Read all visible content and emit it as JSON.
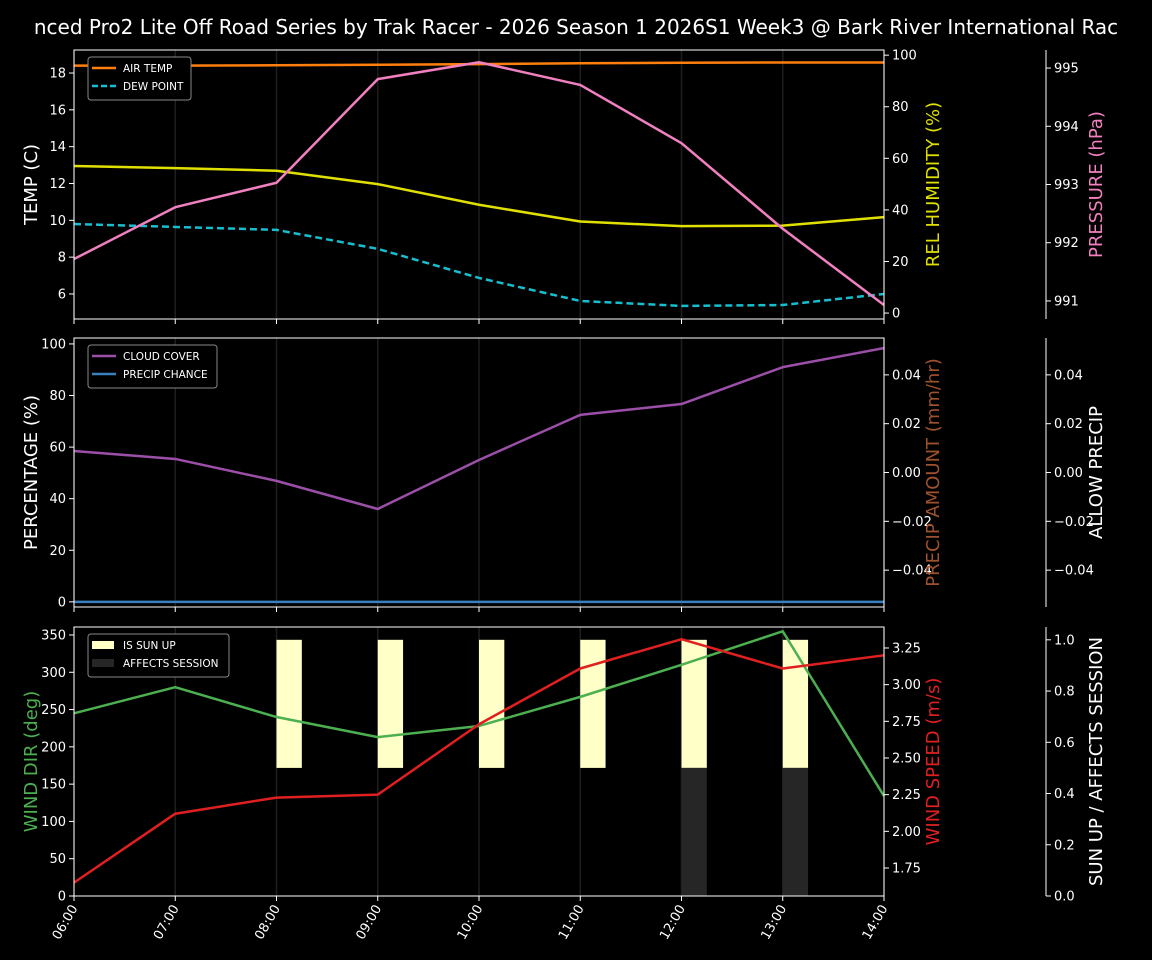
{
  "chart_data": [
    {
      "type": "line",
      "title": "nced Pro2 Lite Off Road Series by Trak Racer - 2026 Season 1 2026S1 Week3 @ Bark River International Rac",
      "x": [
        "06:00",
        "07:00",
        "08:00",
        "09:00",
        "10:00",
        "11:00",
        "12:00",
        "13:00",
        "14:00"
      ],
      "axes": [
        {
          "id": "temp",
          "label": "TEMP (C)",
          "color": "#ffffff",
          "ylim": [
            4.64,
            19.25
          ],
          "ticks": [
            6,
            8,
            10,
            12,
            14,
            16,
            18
          ],
          "side": "left"
        },
        {
          "id": "hum",
          "label": "REL HUMIDITY (%)",
          "color": "#e0e000",
          "ylim": [
            -2.3,
            102
          ],
          "ticks": [
            0,
            20,
            40,
            60,
            80,
            100
          ],
          "side": "right"
        },
        {
          "id": "pres",
          "label": "PRESSURE (hPa)",
          "color": "#f080c0",
          "ylim": [
            990.69,
            995.31
          ],
          "ticks": [
            991,
            992,
            993,
            994,
            995
          ],
          "side": "right-outer"
        }
      ],
      "series": [
        {
          "name": "AIR TEMP",
          "axis": "temp",
          "color": "#ff7f0e",
          "dash": false,
          "legend": true,
          "values": [
            18.4,
            18.4,
            18.42,
            18.45,
            18.48,
            18.53,
            18.56,
            18.57,
            18.57
          ]
        },
        {
          "name": "DEW POINT",
          "axis": "temp",
          "color": "#17becf",
          "dash": true,
          "legend": true,
          "values": [
            9.8,
            9.64,
            9.48,
            8.45,
            6.87,
            5.62,
            5.35,
            5.4,
            6.0
          ]
        },
        {
          "axis": "hum",
          "color": "#e0e000",
          "dash": false,
          "legend": false,
          "values": [
            57,
            56.2,
            55.2,
            50,
            42,
            35.5,
            33.7,
            33.9,
            37.2
          ]
        },
        {
          "axis": "pres",
          "color": "#f080c0",
          "dash": false,
          "legend": false,
          "values": [
            991.72,
            992.61,
            993.03,
            994.81,
            995.1,
            994.71,
            993.71,
            992.24,
            990.93
          ]
        }
      ],
      "legend_position": "top-left",
      "grid": "x-only"
    },
    {
      "type": "line",
      "x": [
        "06:00",
        "07:00",
        "08:00",
        "09:00",
        "10:00",
        "11:00",
        "12:00",
        "13:00",
        "14:00"
      ],
      "axes": [
        {
          "id": "pct",
          "label": "PERCENTAGE (%)",
          "color": "#ffffff",
          "ylim": [
            -2,
            102.3
          ],
          "ticks": [
            0,
            20,
            40,
            60,
            80,
            100
          ],
          "side": "left"
        },
        {
          "id": "amt",
          "label": "PRECIP AMOUNT (mm/hr)",
          "color": "#a0522d",
          "ylim": [
            -0.0551,
            0.0551
          ],
          "ticks": [
            -0.04,
            -0.02,
            0.0,
            0.02,
            0.04
          ],
          "tick_labels": [
            "−0.04",
            "−0.02",
            "0.00",
            "0.02",
            "0.04"
          ],
          "side": "right"
        },
        {
          "id": "allow",
          "label": "ALLOW PRECIP",
          "color": "#ffffff",
          "ylim": [
            -0.0551,
            0.0551
          ],
          "ticks": [
            -0.04,
            -0.02,
            0.0,
            0.02,
            0.04
          ],
          "tick_labels": [
            "−0.04",
            "−0.02",
            "0.00",
            "0.02",
            "0.04"
          ],
          "side": "right-outer"
        }
      ],
      "series": [
        {
          "name": "CLOUD COVER",
          "axis": "pct",
          "color": "#9b4fa8",
          "dash": false,
          "legend": true,
          "values": [
            58.5,
            55.4,
            46.9,
            36,
            55,
            72.5,
            76.7,
            91,
            98.4
          ]
        },
        {
          "name": "PRECIP CHANCE",
          "axis": "pct",
          "color": "#3a7fc0",
          "dash": false,
          "legend": true,
          "values": [
            0,
            0,
            0,
            0,
            0,
            0,
            0,
            0,
            0
          ]
        }
      ],
      "legend_position": "top-left",
      "grid": "x-only"
    },
    {
      "type": "line",
      "x": [
        "06:00",
        "07:00",
        "08:00",
        "09:00",
        "10:00",
        "11:00",
        "12:00",
        "13:00",
        "14:00"
      ],
      "axes": [
        {
          "id": "dir",
          "label": "WIND DIR (deg)",
          "color": "#4caf50",
          "ylim": [
            0,
            360.7
          ],
          "ticks": [
            0,
            50,
            100,
            150,
            200,
            250,
            300,
            350
          ],
          "side": "left"
        },
        {
          "id": "spd",
          "label": "WIND SPEED (m/s)",
          "color": "#e02020",
          "ylim": [
            1.559,
            3.393
          ],
          "ticks": [
            1.75,
            2.0,
            2.25,
            2.5,
            2.75,
            3.0,
            3.25
          ],
          "tick_labels": [
            "1.75",
            "2.00",
            "2.25",
            "2.50",
            "2.75",
            "3.00",
            "3.25"
          ],
          "side": "right"
        },
        {
          "id": "sun",
          "label": "SUN UP / AFFECTS SESSION",
          "color": "#ffffff",
          "ylim": [
            0,
            1.05
          ],
          "ticks": [
            0,
            0.2,
            0.4,
            0.6,
            0.8,
            1.0
          ],
          "tick_labels": [
            "0.0",
            "0.2",
            "0.4",
            "0.6",
            "0.8",
            "1.0"
          ],
          "side": "right-outer"
        }
      ],
      "bars": [
        {
          "name": "IS SUN UP",
          "axis": "sun",
          "color": "#ffffc8",
          "range": [
            0.5,
            1.0
          ],
          "values": [
            0,
            0,
            1,
            1,
            1,
            1,
            1,
            1,
            0
          ]
        },
        {
          "name": "AFFECTS SESSION",
          "axis": "sun",
          "color": "#262626",
          "range": [
            0,
            0.5
          ],
          "values": [
            0,
            0,
            0,
            0,
            0,
            0,
            1,
            1,
            0
          ]
        }
      ],
      "series": [
        {
          "axis": "dir",
          "color": "#4caf50",
          "dash": false,
          "legend": false,
          "values": [
            245,
            280,
            240,
            213,
            228,
            267,
            310,
            355,
            134
          ]
        },
        {
          "axis": "spd",
          "color": "#e02020",
          "dash": false,
          "legend": false,
          "values": [
            1.65,
            2.12,
            2.23,
            2.25,
            2.73,
            3.11,
            3.31,
            3.11,
            3.2
          ]
        }
      ],
      "legend_position": "top-left",
      "grid": "x-only"
    }
  ]
}
